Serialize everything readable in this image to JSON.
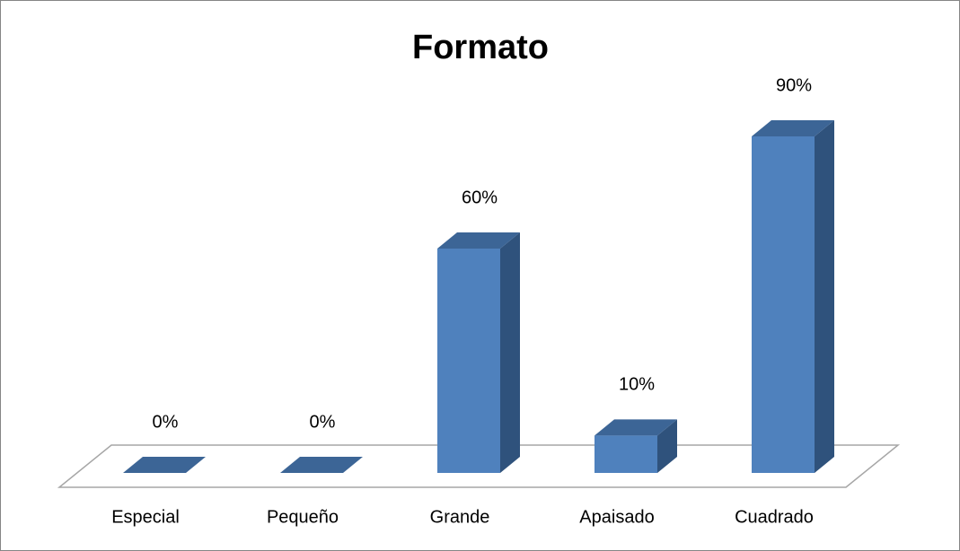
{
  "chart_data": {
    "type": "bar3d",
    "title": "Formato",
    "categories": [
      "Especial",
      "Pequeño",
      "Grande",
      "Apaisado",
      "Cuadrado"
    ],
    "values": [
      0,
      0,
      60,
      10,
      90
    ],
    "value_labels": [
      "0%",
      "0%",
      "60%",
      "10%",
      "90%"
    ],
    "color": "#4f81bd"
  }
}
